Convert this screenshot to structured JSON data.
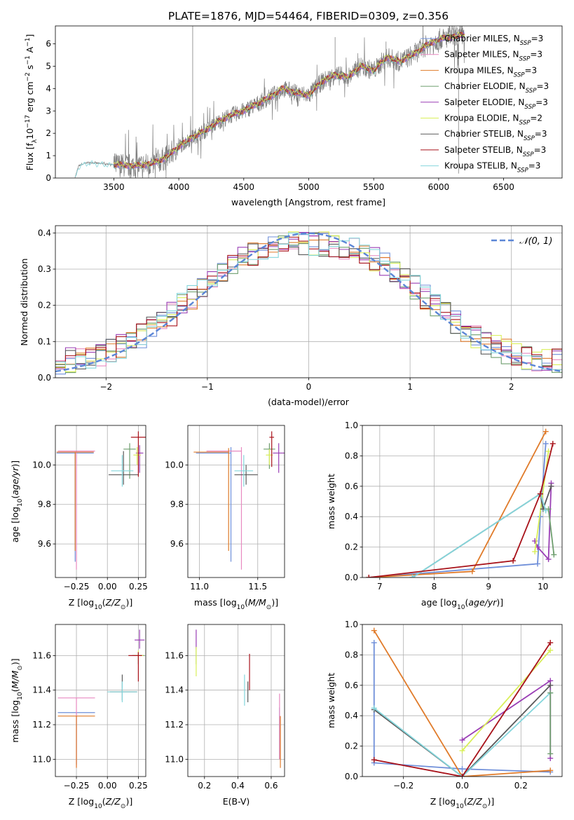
{
  "figure": {
    "title": "PLATE=1876, MJD=54464, FIBERID=0309, z=0.356"
  },
  "colors": {
    "Chabrier MILES": "#6f8fd9",
    "Salpeter MILES": "#e889c0",
    "Kroupa MILES": "#e07b2a",
    "Chabrier ELODIE": "#6e9e6e",
    "Salpeter ELODIE": "#9a3fb5",
    "Kroupa ELODIE": "#d9ef5a",
    "Chabrier STELIB": "#5a5a5a",
    "Salpeter STELIB": "#a8121a",
    "Kroupa STELIB": "#84d6dc",
    "data": "#808080",
    "normal": "#5b86d6"
  },
  "chart_data": [
    {
      "id": "spectrum",
      "type": "line",
      "xlabel": "wavelength [Angstrom, rest frame]",
      "ylabel": "Flux [f_λ 10^-17 erg cm^-2 s^-1 A^-1]",
      "xlim": [
        3050,
        6950
      ],
      "ylim": [
        0,
        6.8
      ],
      "xticks": [
        3500,
        4000,
        4500,
        5000,
        5500,
        6000,
        6500
      ],
      "yticks": [
        0,
        1,
        2,
        3,
        4,
        5,
        6
      ],
      "grid": false,
      "legend_position": "right",
      "legend": [
        {
          "model": "Chabrier MILES",
          "n": "3"
        },
        {
          "model": "Salpeter MILES",
          "n": "3"
        },
        {
          "model": "Kroupa MILES",
          "n": "3"
        },
        {
          "model": "Chabrier ELODIE",
          "n": "3"
        },
        {
          "model": "Salpeter ELODIE",
          "n": "3"
        },
        {
          "model": "Kroupa ELODIE",
          "n": "2"
        },
        {
          "model": "Chabrier STELIB",
          "n": "3"
        },
        {
          "model": "Salpeter STELIB",
          "n": "3"
        },
        {
          "model": "Kroupa STELIB",
          "n": "3"
        }
      ],
      "continuum": {
        "x": [
          3200,
          3230,
          3300,
          3400,
          3500,
          3600,
          3700,
          3800,
          3900,
          4000,
          4100,
          4200,
          4300,
          4400,
          4500,
          4600,
          4700,
          4800,
          4900,
          5000,
          5100,
          5200,
          5300,
          5400,
          5500,
          5600,
          5700,
          5800,
          5900,
          6000,
          6100,
          6200
        ],
        "y": [
          0,
          0.55,
          0.7,
          0.65,
          0.6,
          0.55,
          0.55,
          0.65,
          0.9,
          1.4,
          1.8,
          2.1,
          2.5,
          2.8,
          3.0,
          3.3,
          3.6,
          4.0,
          3.8,
          3.7,
          4.3,
          4.6,
          4.5,
          5.0,
          4.8,
          5.4,
          5.2,
          5.5,
          5.9,
          6.2,
          6.3,
          6.4
        ]
      },
      "spikes": [
        {
          "x": 4107,
          "y": 6.8
        },
        {
          "x": 5203,
          "y": 6.3
        },
        {
          "x": 5595,
          "y": 6.1
        },
        {
          "x": 6153,
          "y": 0.2
        }
      ]
    },
    {
      "id": "residuals",
      "type": "step",
      "xlabel": "(data-model)/error",
      "ylabel": "Normed distribution",
      "xlim": [
        -2.5,
        2.5
      ],
      "ylim": [
        0,
        0.42
      ],
      "xticks": [
        -2,
        -1,
        0,
        1,
        2
      ],
      "yticks": [
        0.0,
        0.1,
        0.2,
        0.3,
        0.4
      ],
      "grid": true,
      "legend_position": "top-right",
      "legend": [
        "𝒩(0, 1)"
      ],
      "normal_curve": {
        "mean": 0,
        "sigma": 1
      }
    },
    {
      "id": "age-vs-Z",
      "type": "errorbar",
      "xlabel": "Z [log10(Z/Z⊙)]",
      "ylabel": "age  [log10(age/yr)]",
      "xlim": [
        -0.42,
        0.31
      ],
      "ylim": [
        9.43,
        10.2
      ],
      "xticks": [
        -0.25,
        0.0,
        0.25
      ],
      "xticklabels": [
        "−0.25",
        "0.00",
        "0.25"
      ],
      "yticks": [
        9.6,
        9.8,
        10.0
      ],
      "grid": true,
      "points": [
        {
          "model": "Chabrier MILES",
          "x": -0.26,
          "y": 10.06,
          "xerr": [
            0.15,
            0.15
          ],
          "yerr": [
            0.55,
            0
          ]
        },
        {
          "model": "Salpeter MILES",
          "x": -0.25,
          "y": 10.07,
          "xerr": [
            0.15,
            0.15
          ],
          "yerr": [
            0.6,
            0
          ]
        },
        {
          "model": "Kroupa MILES",
          "x": -0.26,
          "y": 10.065,
          "xerr": [
            0.15,
            0.15
          ],
          "yerr": [
            0.5,
            0
          ]
        },
        {
          "model": "Chabrier ELODIE",
          "x": 0.18,
          "y": 10.08,
          "xerr": [
            0.05,
            0.05
          ],
          "yerr": [
            0.15,
            0.03
          ]
        },
        {
          "model": "Salpeter ELODIE",
          "x": 0.26,
          "y": 10.06,
          "xerr": [
            0.03,
            0.03
          ],
          "yerr": [
            0.1,
            0.04
          ]
        },
        {
          "model": "Kroupa ELODIE",
          "x": 0.24,
          "y": 10.05,
          "xerr": [
            0.03,
            0.03
          ],
          "yerr": [
            0.05,
            0.04
          ]
        },
        {
          "model": "Chabrier STELIB",
          "x": 0.13,
          "y": 9.95,
          "xerr": [
            0.12,
            0.12
          ],
          "yerr": [
            0.05,
            0.12
          ]
        },
        {
          "model": "Salpeter STELIB",
          "x": 0.25,
          "y": 10.14,
          "xerr": [
            0.06,
            0.06
          ],
          "yerr": [
            0.2,
            0.03
          ]
        },
        {
          "model": "Kroupa STELIB",
          "x": 0.12,
          "y": 9.97,
          "xerr": [
            0.09,
            0.09
          ],
          "yerr": [
            0.08,
            0.08
          ]
        }
      ]
    },
    {
      "id": "age-vs-mass",
      "type": "errorbar",
      "xlabel": "mass [log10(M/M⊙)]",
      "ylabel": "",
      "xlim": [
        10.9,
        11.73
      ],
      "ylim": [
        9.43,
        10.2
      ],
      "xticks": [
        11.0,
        11.5
      ],
      "xticklabels": [
        "11.0",
        "11.5"
      ],
      "yticks": [
        9.6,
        9.8,
        10.0
      ],
      "grid": true,
      "points": [
        {
          "model": "Chabrier MILES",
          "x": 11.27,
          "y": 10.06,
          "xerr": [
            0.3,
            0
          ],
          "yerr": [
            0.55,
            0.03
          ]
        },
        {
          "model": "Salpeter MILES",
          "x": 11.36,
          "y": 10.07,
          "xerr": [
            0.3,
            0
          ],
          "yerr": [
            0.6,
            0.02
          ]
        },
        {
          "model": "Kroupa MILES",
          "x": 11.25,
          "y": 10.065,
          "xerr": [
            0.3,
            0
          ],
          "yerr": [
            0.5,
            0.02
          ]
        },
        {
          "model": "Chabrier ELODIE",
          "x": 11.6,
          "y": 10.08,
          "xerr": [
            0.05,
            0.05
          ],
          "yerr": [
            0.1,
            0.03
          ]
        },
        {
          "model": "Salpeter ELODIE",
          "x": 11.68,
          "y": 10.06,
          "xerr": [
            0.05,
            0.05
          ],
          "yerr": [
            0.1,
            0.05
          ]
        },
        {
          "model": "Kroupa ELODIE",
          "x": 11.6,
          "y": 10.05,
          "xerr": [
            0.03,
            0.03
          ],
          "yerr": [
            0.05,
            0.03
          ]
        },
        {
          "model": "Chabrier STELIB",
          "x": 11.4,
          "y": 9.95,
          "xerr": [
            0.1,
            0.1
          ],
          "yerr": [
            0.05,
            0.05
          ]
        },
        {
          "model": "Salpeter STELIB",
          "x": 11.62,
          "y": 10.14,
          "xerr": [
            0.02,
            0.02
          ],
          "yerr": [
            0.15,
            0.03
          ]
        },
        {
          "model": "Kroupa STELIB",
          "x": 11.38,
          "y": 9.97,
          "xerr": [
            0.08,
            0.08
          ],
          "yerr": [
            0.08,
            0.08
          ]
        }
      ]
    },
    {
      "id": "massweight-vs-age",
      "type": "line",
      "xlabel": "age  [log10(age/yr)]",
      "ylabel": "mass weight",
      "xlim": [
        6.68,
        10.35
      ],
      "ylim": [
        0,
        1.0
      ],
      "xticks": [
        7,
        8,
        9,
        10
      ],
      "yticks": [
        0.0,
        0.2,
        0.4,
        0.6,
        0.8,
        1.0
      ],
      "grid": true,
      "series": [
        {
          "model": "Chabrier MILES",
          "x": [
            6.8,
            9.9,
            9.95,
            10.05
          ],
          "y": [
            0.0,
            0.09,
            0.4,
            0.88
          ]
        },
        {
          "model": "Kroupa MILES",
          "x": [
            6.8,
            8.7,
            10.05
          ],
          "y": [
            0.0,
            0.04,
            0.96
          ]
        },
        {
          "model": "Salpeter ELODIE",
          "x": [
            9.85,
            9.9,
            10.1,
            10.15
          ],
          "y": [
            0.24,
            0.2,
            0.12,
            0.62
          ]
        },
        {
          "model": "Kroupa ELODIE",
          "x": [
            9.85,
            10.1
          ],
          "y": [
            0.17,
            0.83
          ]
        },
        {
          "model": "Chabrier STELIB",
          "x": [
            7.6,
            9.95,
            10.0,
            10.15
          ],
          "y": [
            0.0,
            0.55,
            0.45,
            0.6
          ]
        },
        {
          "model": "Kroupa STELIB",
          "x": [
            7.6,
            9.95,
            10.05
          ],
          "y": [
            0.0,
            0.55,
            0.44
          ]
        },
        {
          "model": "Salpeter STELIB",
          "x": [
            6.8,
            9.45,
            9.95,
            10.18
          ],
          "y": [
            0.0,
            0.11,
            0.55,
            0.88
          ]
        },
        {
          "model": "Chabrier ELODIE",
          "x": [
            10.1,
            10.2
          ],
          "y": [
            0.45,
            0.15
          ]
        }
      ]
    },
    {
      "id": "mass-vs-Z",
      "type": "errorbar",
      "xlabel": "Z [log10(Z/Z⊙)]",
      "ylabel": "mass [log10(M/M⊙)]",
      "xlim": [
        -0.42,
        0.31
      ],
      "ylim": [
        10.9,
        11.78
      ],
      "xticks": [
        -0.25,
        0.0,
        0.25
      ],
      "xticklabels": [
        "−0.25",
        "0.00",
        "0.25"
      ],
      "yticks": [
        11.0,
        11.2,
        11.4,
        11.6
      ],
      "grid": true,
      "points": [
        {
          "model": "Chabrier MILES",
          "x": -0.25,
          "y": 11.27,
          "xerr": [
            0.15,
            0.15
          ],
          "yerr": [
            0.3,
            0
          ]
        },
        {
          "model": "Salpeter MILES",
          "x": -0.25,
          "y": 11.355,
          "xerr": [
            0.15,
            0.15
          ],
          "yerr": [
            0.4,
            0
          ]
        },
        {
          "model": "Kroupa MILES",
          "x": -0.25,
          "y": 11.25,
          "xerr": [
            0.15,
            0.15
          ],
          "yerr": [
            0.3,
            0
          ]
        },
        {
          "model": "Chabrier ELODIE",
          "x": 0.25,
          "y": 11.6,
          "xerr": [
            0.05,
            0.05
          ],
          "yerr": [
            0.05,
            0.02
          ]
        },
        {
          "model": "Salpeter ELODIE",
          "x": 0.26,
          "y": 11.69,
          "xerr": [
            0.04,
            0.04
          ],
          "yerr": [
            0.05,
            0.06
          ]
        },
        {
          "model": "Kroupa ELODIE",
          "x": 0.25,
          "y": 11.6,
          "xerr": [
            0.04,
            0.04
          ],
          "yerr": [
            0.03,
            0.03
          ]
        },
        {
          "model": "Chabrier STELIB",
          "x": 0.12,
          "y": 11.39,
          "xerr": [
            0.1,
            0.12
          ],
          "yerr": [
            0.05,
            0.1
          ]
        },
        {
          "model": "Salpeter STELIB",
          "x": 0.25,
          "y": 11.6,
          "xerr": [
            0.08,
            0.03
          ],
          "yerr": [
            0.15,
            0.02
          ]
        },
        {
          "model": "Kroupa STELIB",
          "x": 0.12,
          "y": 11.39,
          "xerr": [
            0.12,
            0.12
          ],
          "yerr": [
            0.06,
            0.06
          ]
        }
      ]
    },
    {
      "id": "mass-vs-EBV",
      "type": "errorbar",
      "xlabel": "E(B-V)",
      "ylabel": "",
      "xlim": [
        0.1,
        0.68
      ],
      "ylim": [
        10.9,
        11.78
      ],
      "xticks": [
        0.2,
        0.4,
        0.6
      ],
      "xticklabels": [
        "0.2",
        "0.4",
        "0.6"
      ],
      "yticks": [
        11.0,
        11.2,
        11.4,
        11.6
      ],
      "grid": true,
      "points": [
        {
          "model": "Chabrier MILES",
          "x": 0.65,
          "y": 11.3,
          "xerr": [
            0,
            0
          ],
          "yerr": [
            0.3,
            0
          ]
        },
        {
          "model": "Salpeter MILES",
          "x": 0.65,
          "y": 11.35,
          "xerr": [
            0,
            0
          ],
          "yerr": [
            0.35,
            0.03
          ]
        },
        {
          "model": "Kroupa MILES",
          "x": 0.655,
          "y": 11.25,
          "xerr": [
            0,
            0
          ],
          "yerr": [
            0.3,
            0
          ]
        },
        {
          "model": "Chabrier ELODIE",
          "x": 0.15,
          "y": 11.6,
          "xerr": [
            0,
            0
          ],
          "yerr": [
            0.05,
            0.05
          ]
        },
        {
          "model": "Salpeter ELODIE",
          "x": 0.15,
          "y": 11.69,
          "xerr": [
            0,
            0
          ],
          "yerr": [
            0.05,
            0.06
          ]
        },
        {
          "model": "Kroupa ELODIE",
          "x": 0.15,
          "y": 11.6,
          "xerr": [
            0,
            0
          ],
          "yerr": [
            0.12,
            0.05
          ]
        },
        {
          "model": "Chabrier STELIB",
          "x": 0.46,
          "y": 11.39,
          "xerr": [
            0,
            0
          ],
          "yerr": [
            0.06,
            0.06
          ]
        },
        {
          "model": "Salpeter STELIB",
          "x": 0.47,
          "y": 11.5,
          "xerr": [
            0,
            0
          ],
          "yerr": [
            0.1,
            0.11
          ]
        },
        {
          "model": "Kroupa STELIB",
          "x": 0.44,
          "y": 11.39,
          "xerr": [
            0,
            0
          ],
          "yerr": [
            0.08,
            0.1
          ]
        }
      ]
    },
    {
      "id": "massweight-vs-Z",
      "type": "line",
      "xlabel": "Z [log10(Z/Z⊙)]",
      "ylabel": "mass weight",
      "xlim": [
        -0.34,
        0.34
      ],
      "ylim": [
        0,
        1.0
      ],
      "xticks": [
        -0.2,
        0.0,
        0.2
      ],
      "xticklabels": [
        "−0.2",
        "0.0",
        "0.2"
      ],
      "yticks": [
        0.0,
        0.2,
        0.4,
        0.6,
        0.8,
        1.0
      ],
      "grid": true,
      "series": [
        {
          "model": "Chabrier MILES",
          "x": [
            -0.3,
            -0.3,
            0.0,
            0.3
          ],
          "y": [
            0.88,
            0.09,
            0.05,
            0.03
          ]
        },
        {
          "model": "Kroupa MILES",
          "x": [
            -0.3,
            0.0,
            0.3
          ],
          "y": [
            0.96,
            0.0,
            0.04
          ]
        },
        {
          "model": "Salpeter ELODIE",
          "x": [
            0.0,
            0.3,
            0.3
          ],
          "y": [
            0.24,
            0.63,
            0.12
          ]
        },
        {
          "model": "Kroupa ELODIE",
          "x": [
            0.0,
            0.3
          ],
          "y": [
            0.17,
            0.83
          ]
        },
        {
          "model": "Chabrier STELIB",
          "x": [
            -0.3,
            0.0,
            0.3
          ],
          "y": [
            0.44,
            0.0,
            0.6
          ]
        },
        {
          "model": "Kroupa STELIB",
          "x": [
            -0.3,
            0.0,
            0.3
          ],
          "y": [
            0.45,
            0.0,
            0.55
          ]
        },
        {
          "model": "Salpeter STELIB",
          "x": [
            -0.3,
            0.0,
            0.3
          ],
          "y": [
            0.11,
            0.0,
            0.88
          ]
        },
        {
          "model": "Chabrier ELODIE",
          "x": [
            0.3,
            0.3
          ],
          "y": [
            0.55,
            0.15
          ]
        }
      ]
    }
  ]
}
